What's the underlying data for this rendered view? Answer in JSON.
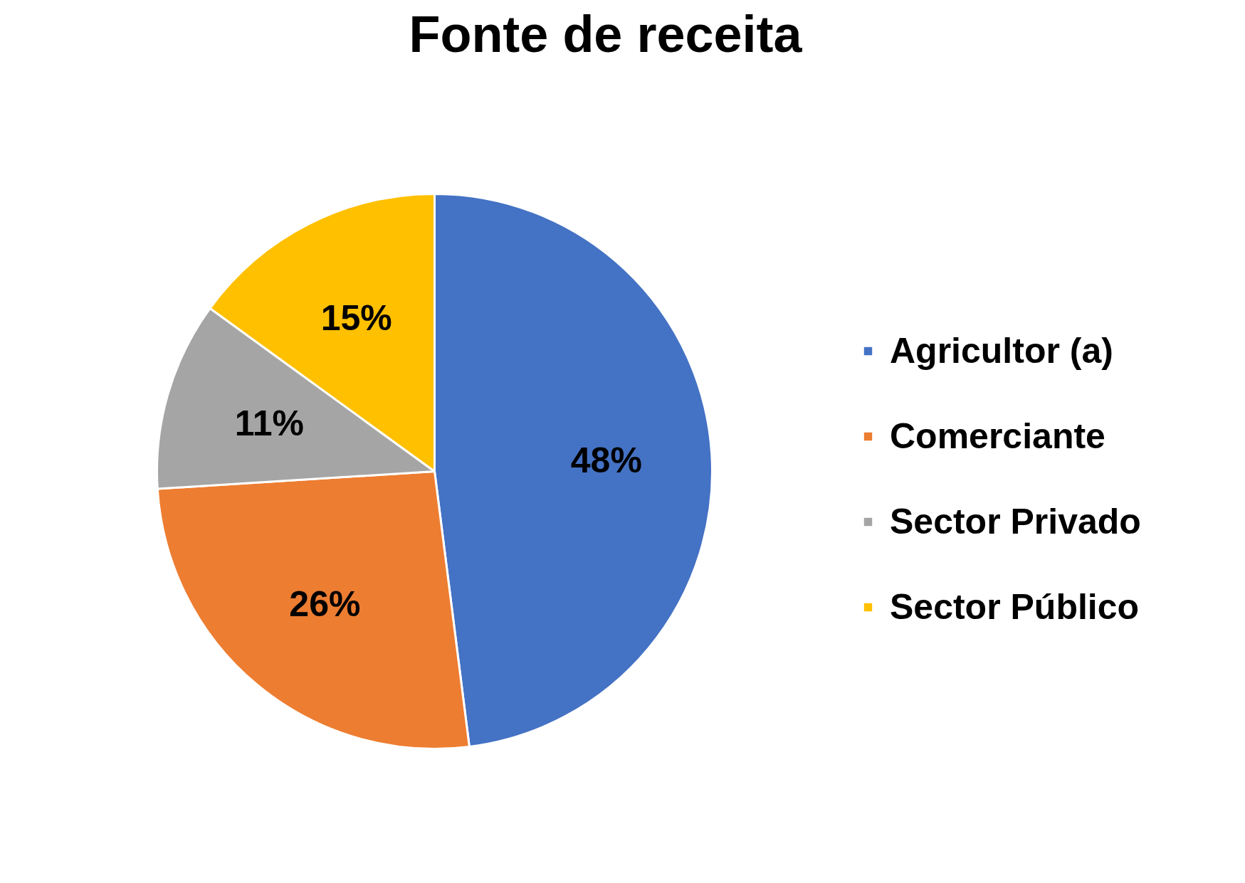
{
  "chart_data": {
    "type": "pie",
    "title": "Fonte de receita",
    "categories": [
      "Agricultor (a)",
      "Comerciante",
      "Sector Privado",
      "Sector Público"
    ],
    "values": [
      48,
      26,
      11,
      15
    ],
    "colors": [
      "#4472c4",
      "#ed7d31",
      "#a5a5a5",
      "#ffc000"
    ],
    "value_labels": [
      "48%",
      "26%",
      "11%",
      "15%"
    ],
    "legend": "right"
  }
}
